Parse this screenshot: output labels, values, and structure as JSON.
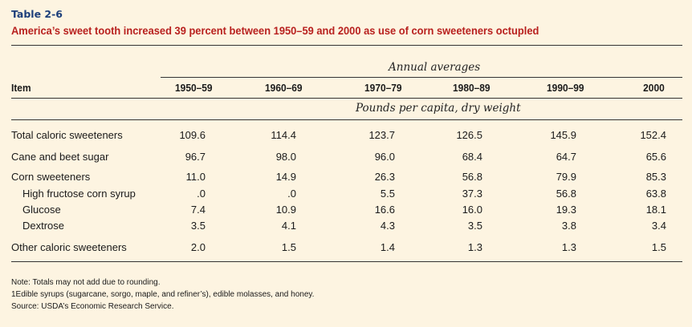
{
  "table_label": "Table 2-6",
  "title": "America’s sweet tooth increased 39 percent between 1950–59 and 2000 as use of corn sweeteners octupled",
  "header": {
    "span_label": "Annual averages",
    "unit_label": "Pounds per capita, dry weight",
    "item": "Item",
    "columns": [
      "1950–59",
      "1960–69",
      "1970–79",
      "1980–89",
      "1990–99",
      "2000"
    ]
  },
  "rows": [
    {
      "label": "Total caloric sweeteners",
      "values": [
        "109.6",
        "114.4",
        "123.7",
        "126.5",
        "145.9",
        "152.4"
      ]
    },
    {
      "label": "Cane and beet sugar",
      "values": [
        "96.7",
        "98.0",
        "96.0",
        "68.4",
        "64.7",
        "65.6"
      ]
    },
    {
      "label": "Corn sweeteners",
      "values": [
        "11.0",
        "14.9",
        "26.3",
        "56.8",
        "79.9",
        "85.3"
      ]
    },
    {
      "label": "High fructose corn syrup",
      "values": [
        ".0",
        ".0",
        "5.5",
        "37.3",
        "56.8",
        "63.8"
      ]
    },
    {
      "label": "Glucose",
      "values": [
        "7.4",
        "10.9",
        "16.6",
        "16.0",
        "19.3",
        "18.1"
      ]
    },
    {
      "label": "Dextrose",
      "values": [
        "3.5",
        "4.1",
        "4.3",
        "3.5",
        "3.8",
        "3.4"
      ]
    },
    {
      "label": "Other caloric sweeteners",
      "values": [
        "2.0",
        "1.5",
        "1.4",
        "1.3",
        "1.3",
        "1.5"
      ]
    }
  ],
  "notes": [
    "Note: Totals may not add due to rounding.",
    "1Edible syrups (sugarcane, sorgo, maple, and refiner’s), edible molasses, and honey.",
    "Source: USDA’s Economic Research Service."
  ]
}
